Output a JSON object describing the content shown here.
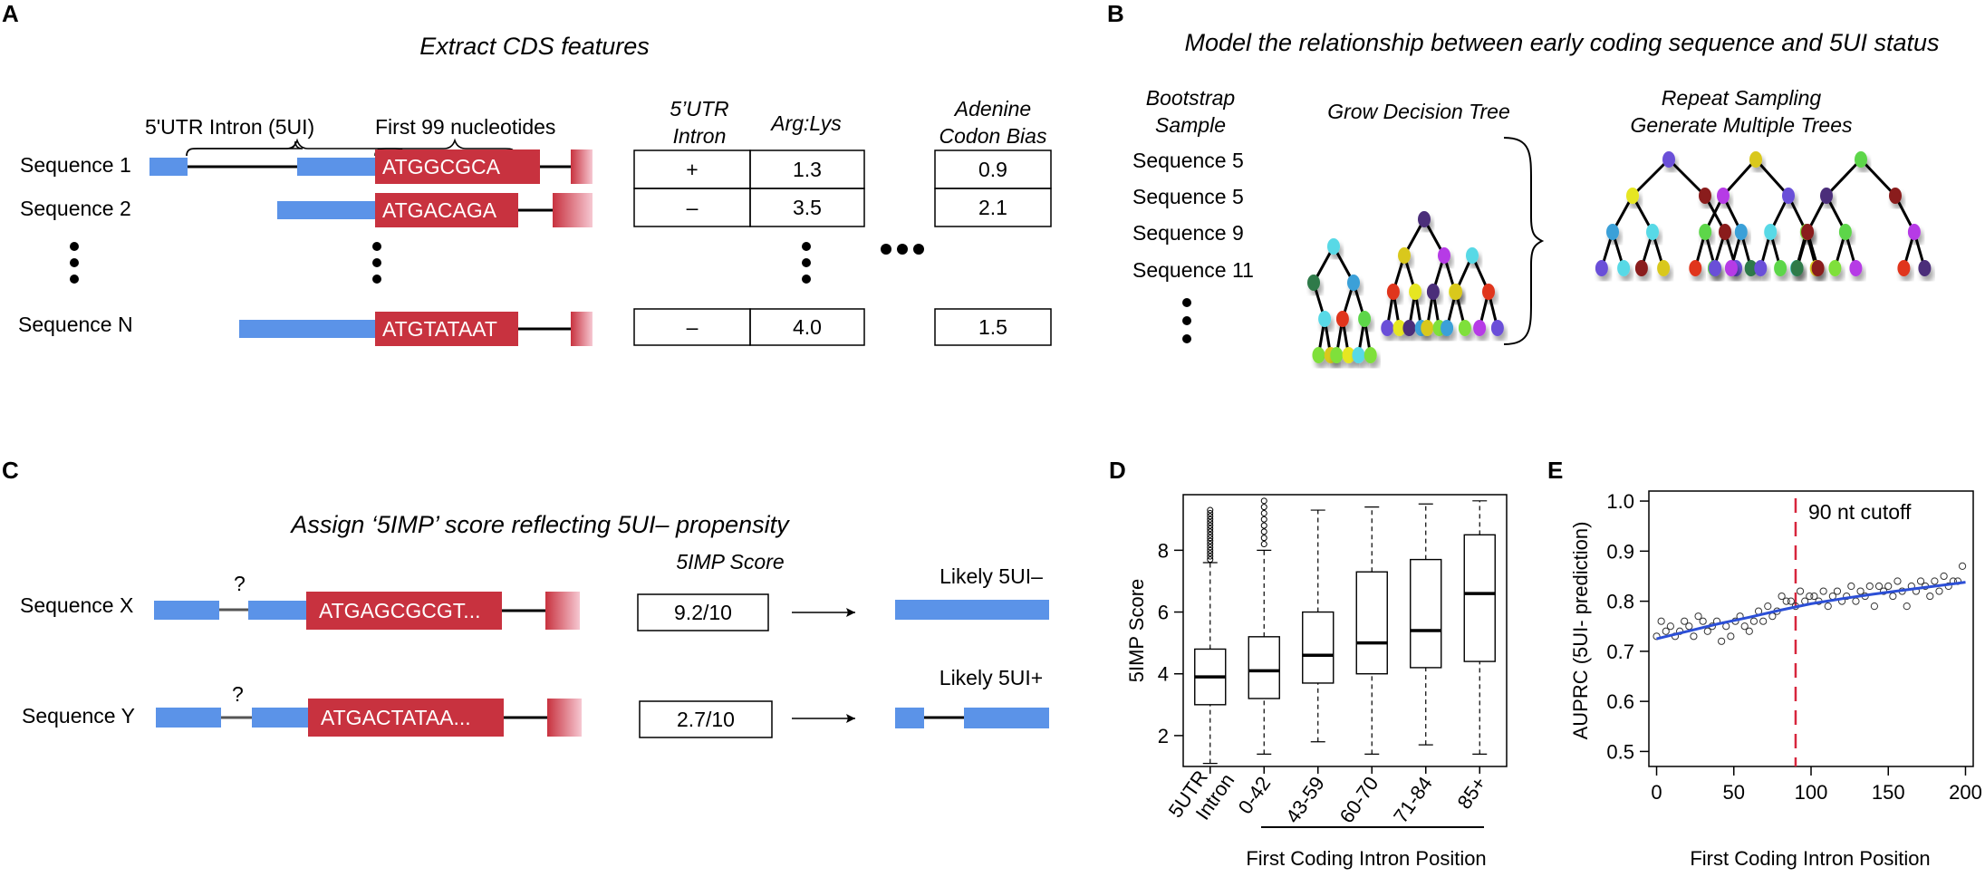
{
  "panels": {
    "A": {
      "letter": "A",
      "title": "Extract CDS features",
      "intron_label": "5'UTR Intron (5UI)",
      "first99_label": "First 99 nucleotides",
      "sequences": [
        {
          "name": "Sequence 1",
          "codon": "ATGGCGCA",
          "intron_cell": "+",
          "arg_lys": "1.3",
          "adenine_bias": "0.9"
        },
        {
          "name": "Sequence 2",
          "codon": "ATGACAGA",
          "intron_cell": "–",
          "arg_lys": "3.5",
          "adenine_bias": "2.1"
        },
        {
          "name": "Sequence N",
          "codon": "ATGTATAAT",
          "intron_cell": "–",
          "arg_lys": "4.0",
          "adenine_bias": "1.5"
        }
      ],
      "col_headers": {
        "intron": [
          "5’UTR",
          "Intron"
        ],
        "arg_lys": "Arg:Lys",
        "adenine": [
          "Adenine",
          "Codon Bias"
        ]
      }
    },
    "B": {
      "letter": "B",
      "title": "Model the relationship between early coding sequence and 5UI status",
      "bootstrap_header": [
        "Bootstrap",
        "Sample"
      ],
      "samples": [
        "Sequence 5",
        "Sequence 5",
        "Sequence 9",
        "Sequence 11"
      ],
      "grow_label": "Grow Decision Tree",
      "repeat_label": [
        "Repeat Sampling",
        "Generate Multiple Trees"
      ]
    },
    "C": {
      "letter": "C",
      "title": "Assign ‘5IMP’ score reflecting 5UI– propensity",
      "score_header": "5IMP Score",
      "rows": [
        {
          "name": "Sequence X",
          "codon": "ATGAGCGCGT...",
          "score": "9.2/10",
          "outcome": "Likely 5UI–"
        },
        {
          "name": "Sequence Y",
          "codon": "ATGACTATAA...",
          "score": "2.7/10",
          "outcome": "Likely 5UI+"
        }
      ],
      "question_mark": "?"
    },
    "D": {
      "letter": "D",
      "ylabel": "5IMP Score",
      "xlabel": "First Coding Intron Position"
    },
    "E": {
      "letter": "E",
      "ylabel": "AUPRC (5UI- prediction)",
      "xlabel": "First Coding Intron Position",
      "cutoff_label": "90 nt cutoff"
    }
  },
  "colors": {
    "exon_blue": "#5b93e8",
    "cds_red": "#c8323f",
    "fit_blue": "#2c4fd6",
    "cutoff_red": "#d7263d"
  },
  "chart_data": [
    {
      "type": "box",
      "ylabel": "5IMP Score",
      "xlabel": "First Coding Intron Position",
      "categories": [
        "5UTR Intron",
        "0-42",
        "43-59",
        "60-70",
        "71-84",
        "85+"
      ],
      "yticks": [
        2,
        4,
        6,
        8
      ],
      "ylim": [
        1,
        9.8
      ],
      "boxes": [
        {
          "category": "5UTR Intron",
          "whisker_low": 1.1,
          "q1": 3.0,
          "median": 3.9,
          "q3": 4.8,
          "whisker_high": 7.6,
          "outliers": [
            7.7,
            7.8,
            7.9,
            8.0,
            8.1,
            8.2,
            8.3,
            8.4,
            8.5,
            8.6,
            8.7,
            8.8,
            8.9,
            9.0,
            9.1,
            9.2,
            9.3
          ]
        },
        {
          "category": "0-42",
          "whisker_low": 1.4,
          "q1": 3.2,
          "median": 4.1,
          "q3": 5.2,
          "whisker_high": 8.0,
          "outliers": [
            8.2,
            8.4,
            8.6,
            8.8,
            9.0,
            9.2,
            9.4,
            9.6
          ]
        },
        {
          "category": "43-59",
          "whisker_low": 1.8,
          "q1": 3.7,
          "median": 4.6,
          "q3": 6.0,
          "whisker_high": 9.3,
          "outliers": []
        },
        {
          "category": "60-70",
          "whisker_low": 1.4,
          "q1": 4.0,
          "median": 5.0,
          "q3": 7.3,
          "whisker_high": 9.4,
          "outliers": []
        },
        {
          "category": "71-84",
          "whisker_low": 1.7,
          "q1": 4.2,
          "median": 5.4,
          "q3": 7.7,
          "whisker_high": 9.5,
          "outliers": []
        },
        {
          "category": "85+",
          "whisker_low": 1.4,
          "q1": 4.4,
          "median": 6.6,
          "q3": 8.5,
          "whisker_high": 9.6,
          "outliers": []
        }
      ]
    },
    {
      "type": "scatter",
      "xlabel": "First Coding Intron Position",
      "ylabel": "AUPRC (5UI- prediction)",
      "xlim": [
        -5,
        205
      ],
      "ylim": [
        0.47,
        1.02
      ],
      "xticks": [
        0,
        50,
        100,
        150,
        200
      ],
      "yticks": [
        0.5,
        0.6,
        0.7,
        0.8,
        0.9,
        1.0
      ],
      "cutoff_x": 90,
      "x": [
        0,
        3,
        6,
        9,
        12,
        15,
        18,
        21,
        24,
        27,
        30,
        33,
        36,
        39,
        42,
        45,
        48,
        51,
        54,
        57,
        60,
        63,
        66,
        69,
        72,
        75,
        78,
        81,
        84,
        87,
        90,
        93,
        96,
        99,
        102,
        105,
        108,
        111,
        114,
        117,
        120,
        123,
        126,
        129,
        132,
        135,
        138,
        141,
        144,
        147,
        150,
        153,
        156,
        159,
        162,
        165,
        168,
        171,
        174,
        177,
        180,
        183,
        186,
        189,
        192,
        195,
        198
      ],
      "y": [
        0.73,
        0.76,
        0.74,
        0.75,
        0.73,
        0.74,
        0.76,
        0.75,
        0.73,
        0.77,
        0.76,
        0.74,
        0.75,
        0.76,
        0.72,
        0.75,
        0.73,
        0.76,
        0.77,
        0.75,
        0.74,
        0.76,
        0.78,
        0.76,
        0.79,
        0.77,
        0.78,
        0.81,
        0.8,
        0.8,
        0.79,
        0.82,
        0.8,
        0.81,
        0.81,
        0.8,
        0.82,
        0.79,
        0.81,
        0.82,
        0.8,
        0.81,
        0.83,
        0.8,
        0.82,
        0.81,
        0.83,
        0.79,
        0.83,
        0.82,
        0.83,
        0.81,
        0.84,
        0.82,
        0.79,
        0.83,
        0.82,
        0.84,
        0.83,
        0.81,
        0.84,
        0.82,
        0.85,
        0.83,
        0.84,
        0.84,
        0.87
      ],
      "fit": {
        "x": [
          0,
          20,
          40,
          60,
          80,
          100,
          120,
          140,
          160,
          180,
          200
        ],
        "y": [
          0.725,
          0.74,
          0.755,
          0.768,
          0.782,
          0.795,
          0.805,
          0.814,
          0.822,
          0.83,
          0.838
        ]
      }
    }
  ]
}
